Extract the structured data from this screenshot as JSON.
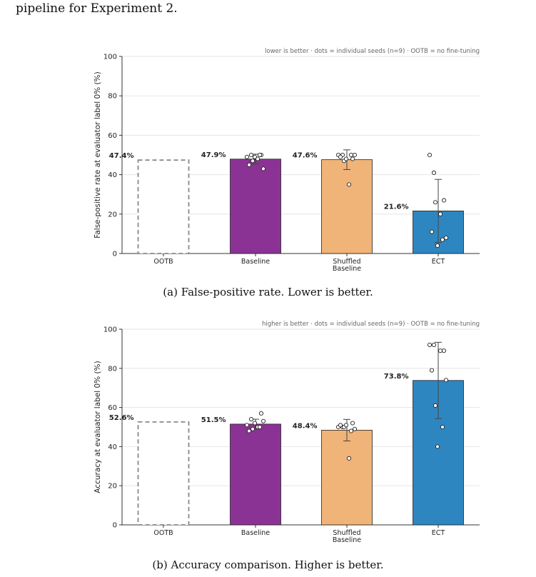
{
  "intro_text": "pipeline for Experiment 2.",
  "captions": [
    "(a) False-positive rate. Lower is better.",
    "(b) Accuracy comparison. Higher is better."
  ],
  "colors": {
    "OOTB": "#ffffff",
    "Baseline": "#8b3394",
    "Shuffled Baseline": "#f0b378",
    "ECT": "#2e86c1",
    "dashed_edge": "#888888"
  },
  "chart_data": [
    {
      "type": "bar",
      "annotation": "lower is better · dots = individual seeds (n=9) · OOTB = no fine-tuning",
      "ylabel": "False-positive rate at evaluator label 0% (%)",
      "ylim": [
        0,
        100
      ],
      "yticks": [
        0,
        20,
        40,
        60,
        80,
        100
      ],
      "grid": true,
      "categories": [
        [
          "OOTB"
        ],
        [
          "Baseline"
        ],
        [
          "Shuffled",
          "Baseline"
        ],
        [
          "ECT"
        ]
      ],
      "values": [
        47.4,
        47.9,
        47.6,
        21.6
      ],
      "value_labels": [
        "47.4%",
        "47.9%",
        "47.6%",
        "21.6%"
      ],
      "error": [
        null,
        2.5,
        5.0,
        16.0
      ],
      "seeds": [
        [],
        [
          49,
          50,
          50,
          48,
          45,
          43,
          47,
          50,
          49
        ],
        [
          50,
          50,
          48,
          35,
          49,
          50,
          47,
          50,
          48
        ],
        [
          50,
          41,
          27,
          20,
          11,
          8,
          26,
          7,
          4
        ]
      ]
    },
    {
      "type": "bar",
      "annotation": "higher is better · dots = individual seeds (n=9) · OOTB = no fine-tuning",
      "ylabel": "Accuracy at evaluator label 0% (%)",
      "ylim": [
        0,
        100
      ],
      "yticks": [
        0,
        20,
        40,
        60,
        80,
        100
      ],
      "grid": true,
      "categories": [
        [
          "OOTB"
        ],
        [
          "Baseline"
        ],
        [
          "Shuffled",
          "Baseline"
        ],
        [
          "ECT"
        ]
      ],
      "values": [
        52.6,
        51.5,
        48.4,
        73.8
      ],
      "value_labels": [
        "52.6%",
        "51.5%",
        "48.4%",
        "73.8%"
      ],
      "error": [
        null,
        2.5,
        5.5,
        19.5
      ],
      "seeds": [
        [],
        [
          51,
          54,
          57,
          50,
          48,
          53,
          49,
          50,
          52
        ],
        [
          50,
          50,
          52,
          34,
          51,
          49,
          50,
          48,
          51
        ],
        [
          92,
          92,
          89,
          89,
          79,
          74,
          61,
          50,
          40
        ]
      ]
    }
  ]
}
